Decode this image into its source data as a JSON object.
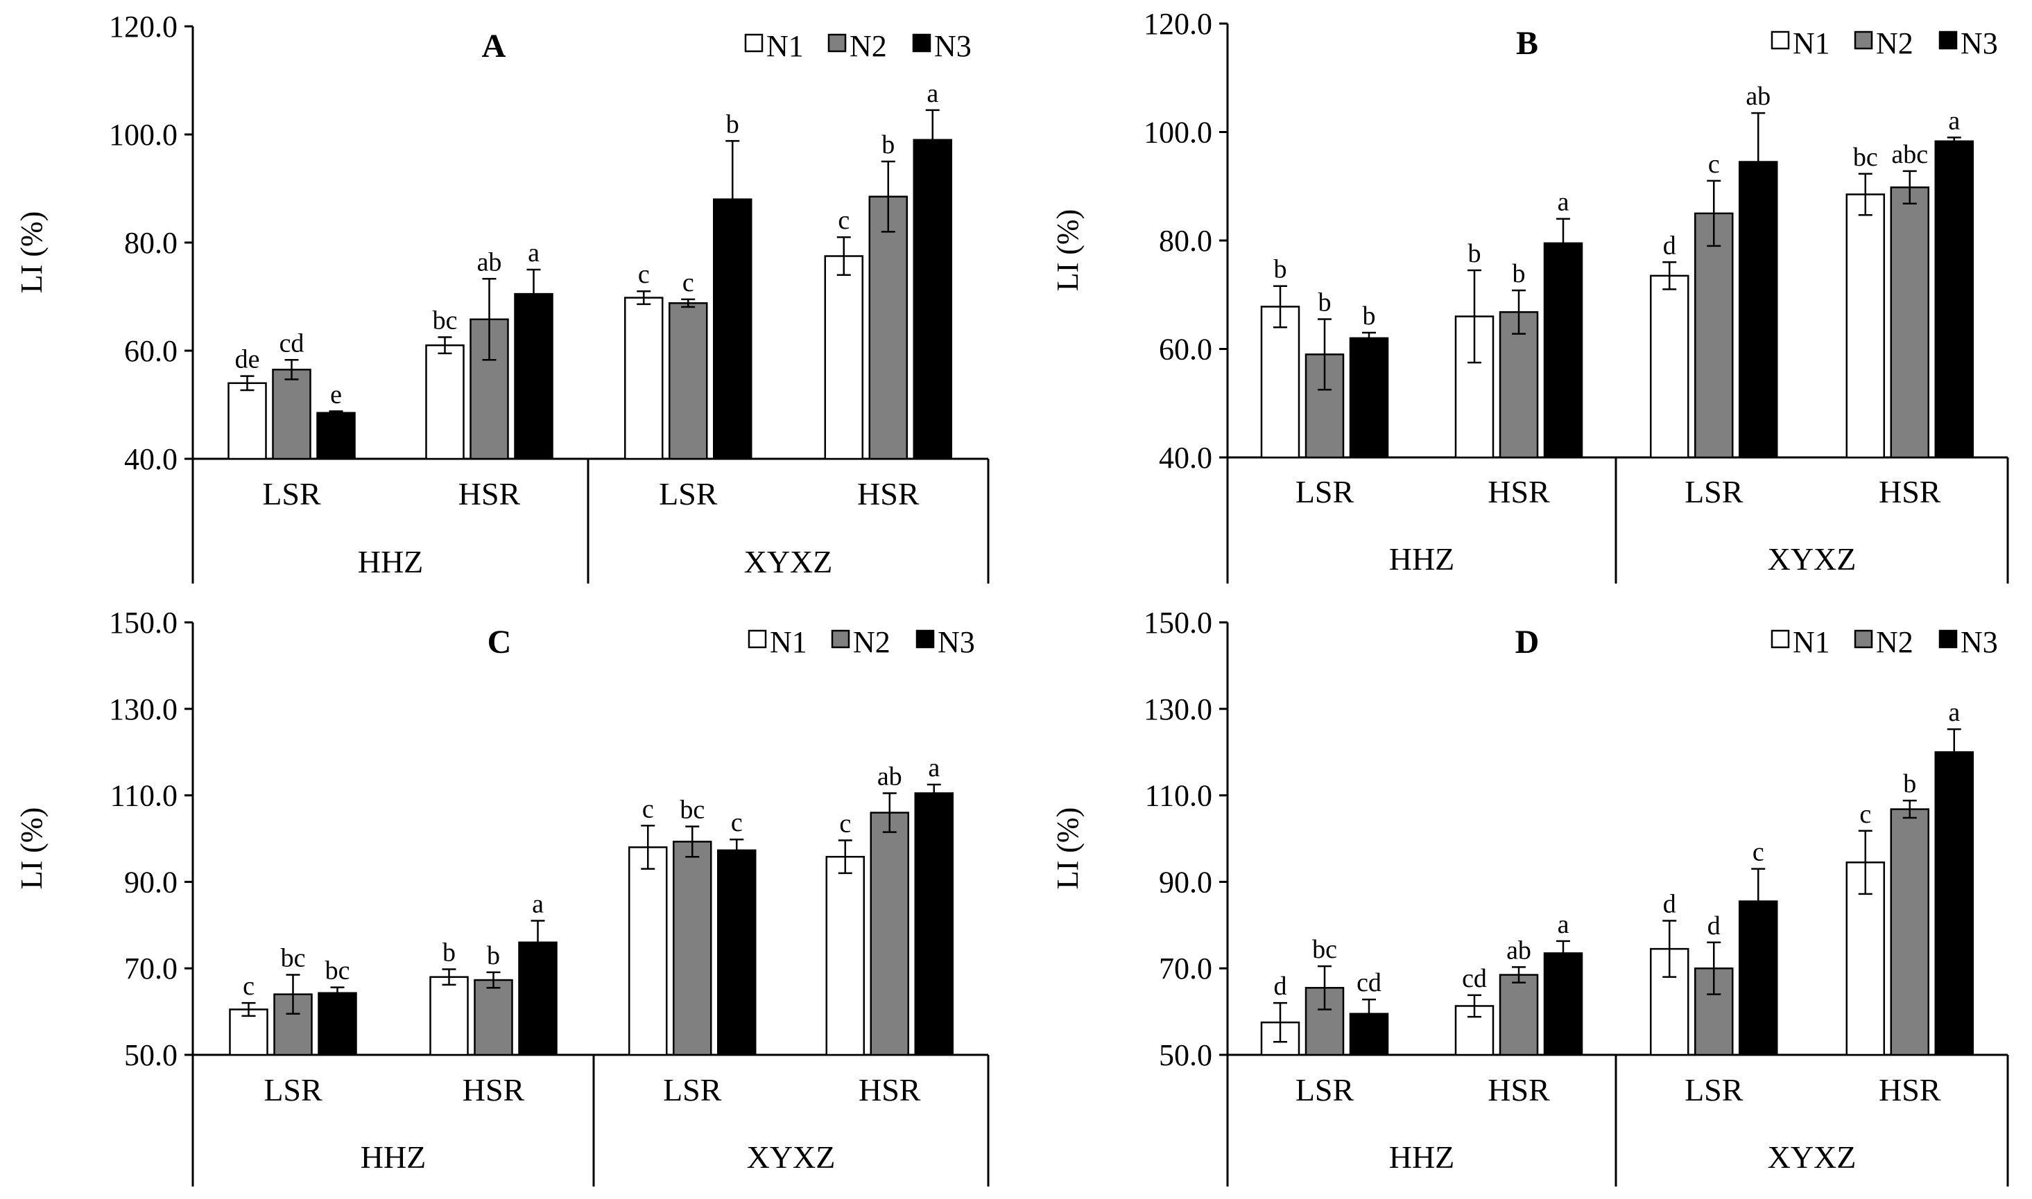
{
  "figure": {
    "series_names": [
      "N1",
      "N2",
      "N3"
    ],
    "series_colors": [
      "#ffffff",
      "#808080",
      "#000000"
    ],
    "y_axis_label": "LI (%)"
  },
  "chart_data": [
    {
      "type": "bar",
      "title": "A",
      "ylabel": "LI (%)",
      "ylim": [
        40,
        120
      ],
      "yticks": [
        "40.0",
        "60.0",
        "80.0",
        "100.0",
        "120.0"
      ],
      "tick_values": [
        40,
        60,
        80,
        100,
        120
      ],
      "sites": [
        "HHZ",
        "XYXZ"
      ],
      "categories": [
        "LSR",
        "HSR",
        "LSR",
        "HSR"
      ],
      "series": [
        {
          "name": "N1",
          "values": [
            54.0,
            61.0,
            69.8,
            77.5
          ],
          "errors": [
            1.3,
            1.5,
            1.2,
            3.5
          ],
          "letters": [
            "de",
            "bc",
            "c",
            "c"
          ]
        },
        {
          "name": "N2",
          "values": [
            56.5,
            65.8,
            68.8,
            88.5
          ],
          "errors": [
            1.8,
            7.5,
            0.7,
            6.5
          ],
          "letters": [
            "cd",
            "ab",
            "c",
            "b"
          ]
        },
        {
          "name": "N3",
          "values": [
            48.5,
            70.5,
            88.0,
            99.0
          ],
          "errors": [
            0.3,
            4.5,
            10.8,
            5.5
          ],
          "letters": [
            "e",
            "a",
            "b",
            "a"
          ]
        }
      ]
    },
    {
      "type": "bar",
      "title": "B",
      "ylabel": "LI (%)",
      "ylim": [
        40,
        120
      ],
      "yticks": [
        "40.0",
        "60.0",
        "80.0",
        "100.0",
        "120.0"
      ],
      "tick_values": [
        40,
        60,
        80,
        100,
        120
      ],
      "sites": [
        "HHZ",
        "XYXZ"
      ],
      "categories": [
        "LSR",
        "HSR",
        "LSR",
        "HSR"
      ],
      "series": [
        {
          "name": "N1",
          "values": [
            67.8,
            66.0,
            73.5,
            88.5
          ],
          "errors": [
            3.8,
            8.5,
            2.5,
            3.8
          ],
          "letters": [
            "b",
            "b",
            "d",
            "bc"
          ]
        },
        {
          "name": "N2",
          "values": [
            59.0,
            66.8,
            85.0,
            89.8
          ],
          "errors": [
            6.5,
            4.0,
            6.0,
            3.0
          ],
          "letters": [
            "b",
            "b",
            "c",
            "abc"
          ]
        },
        {
          "name": "N3",
          "values": [
            62.0,
            79.5,
            94.5,
            98.3
          ],
          "errors": [
            1.0,
            4.5,
            9.0,
            0.7
          ],
          "letters": [
            "b",
            "a",
            "ab",
            "a"
          ]
        }
      ]
    },
    {
      "type": "bar",
      "title": "C",
      "ylabel": "LI (%)",
      "ylim": [
        50,
        150
      ],
      "yticks": [
        "50.0",
        "70.0",
        "90.0",
        "110.0",
        "130.0",
        "150.0"
      ],
      "tick_values": [
        50,
        70,
        90,
        110,
        130,
        150
      ],
      "sites": [
        "HHZ",
        "XYXZ"
      ],
      "categories": [
        "LSR",
        "HSR",
        "LSR",
        "HSR"
      ],
      "series": [
        {
          "name": "N1",
          "values": [
            60.5,
            68.0,
            98.0,
            95.8
          ],
          "errors": [
            1.5,
            1.8,
            5.0,
            3.8
          ],
          "letters": [
            "c",
            "b",
            "c",
            "c"
          ]
        },
        {
          "name": "N2",
          "values": [
            64.0,
            67.3,
            99.3,
            106.0
          ],
          "errors": [
            4.5,
            1.8,
            3.5,
            4.5
          ],
          "letters": [
            "bc",
            "b",
            "bc",
            "ab"
          ]
        },
        {
          "name": "N3",
          "values": [
            64.3,
            76.0,
            97.3,
            110.5
          ],
          "errors": [
            1.3,
            5.0,
            2.5,
            2.0
          ],
          "letters": [
            "bc",
            "a",
            "c",
            "a"
          ]
        }
      ]
    },
    {
      "type": "bar",
      "title": "D",
      "ylabel": "LI (%)",
      "ylim": [
        50,
        150
      ],
      "yticks": [
        "50.0",
        "70.0",
        "90.0",
        "110.0",
        "130.0",
        "150.0"
      ],
      "tick_values": [
        50,
        70,
        90,
        110,
        130,
        150
      ],
      "sites": [
        "HHZ",
        "XYXZ"
      ],
      "categories": [
        "LSR",
        "HSR",
        "LSR",
        "HSR"
      ],
      "series": [
        {
          "name": "N1",
          "values": [
            57.5,
            61.3,
            74.5,
            94.5
          ],
          "errors": [
            4.5,
            2.5,
            6.5,
            7.3
          ],
          "letters": [
            "d",
            "cd",
            "d",
            "c"
          ]
        },
        {
          "name": "N2",
          "values": [
            65.5,
            68.5,
            70.0,
            106.8
          ],
          "errors": [
            5.0,
            1.8,
            6.0,
            2.0
          ],
          "letters": [
            "bc",
            "ab",
            "d",
            "b"
          ]
        },
        {
          "name": "N3",
          "values": [
            59.5,
            73.5,
            85.5,
            120.0
          ],
          "errors": [
            3.3,
            2.8,
            7.5,
            5.3
          ],
          "letters": [
            "cd",
            "a",
            "c",
            "a"
          ]
        }
      ]
    }
  ]
}
